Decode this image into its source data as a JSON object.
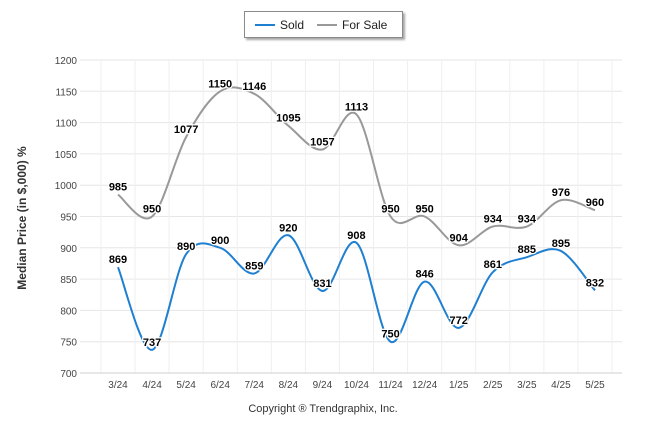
{
  "chart_data": {
    "type": "line",
    "categories": [
      "3/24",
      "4/24",
      "5/24",
      "6/24",
      "7/24",
      "8/24",
      "9/24",
      "10/24",
      "11/24",
      "12/24",
      "1/25",
      "2/25",
      "3/25",
      "4/25",
      "5/25"
    ],
    "series": [
      {
        "name": "Sold",
        "color": "#1f7fd0",
        "values": [
          869,
          737,
          890,
          900,
          859,
          920,
          831,
          908,
          750,
          846,
          772,
          861,
          885,
          895,
          832
        ]
      },
      {
        "name": "For Sale",
        "color": "#999999",
        "values": [
          985,
          950,
          1077,
          1150,
          1146,
          1095,
          1057,
          1113,
          950,
          950,
          904,
          934,
          934,
          976,
          960
        ]
      }
    ],
    "ylabel": "Median Price (in $,000) %",
    "ylim": [
      700,
      1200
    ],
    "yticks": [
      700,
      750,
      800,
      850,
      900,
      950,
      1000,
      1050,
      1100,
      1150,
      1200
    ],
    "grid": true,
    "legend_position": "top-center"
  },
  "footer": {
    "copyright": "Copyright ® Trendgraphix, Inc."
  }
}
